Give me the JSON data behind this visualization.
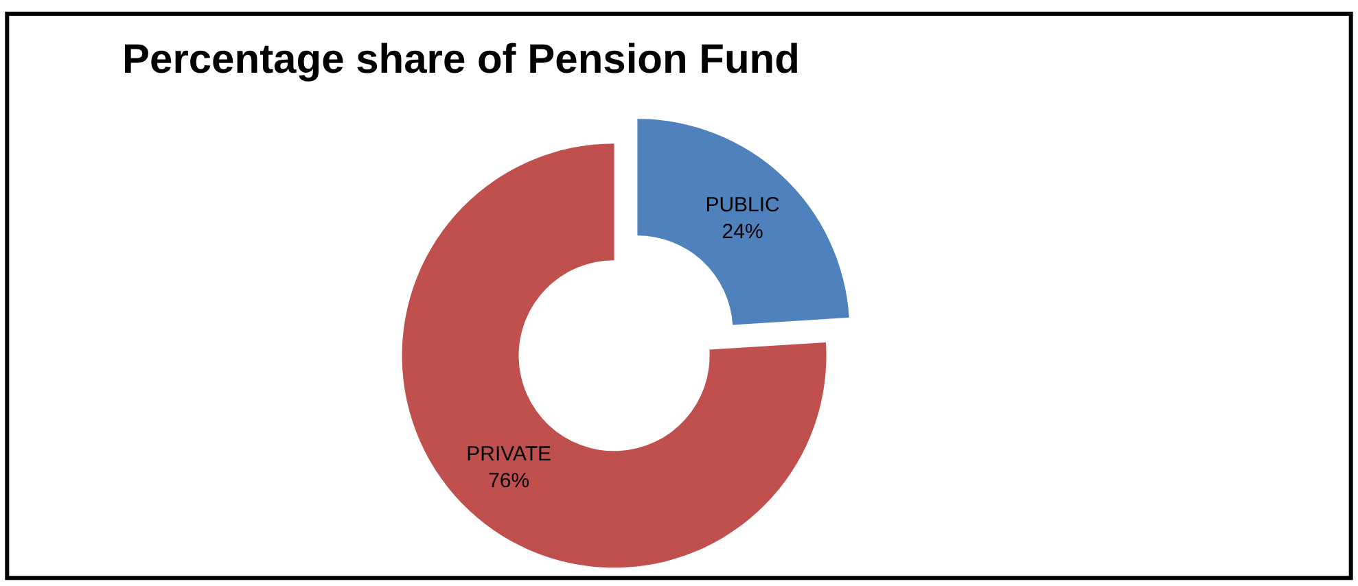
{
  "chart_data": {
    "type": "donut",
    "title": "Percentage share of Pension Fund",
    "categories": [
      "PUBLIC",
      "PRIVATE"
    ],
    "values": [
      24,
      76
    ],
    "value_labels": [
      "24%",
      "76%"
    ],
    "colors": [
      "#4f81bd",
      "#c0504d"
    ],
    "legend": false
  }
}
